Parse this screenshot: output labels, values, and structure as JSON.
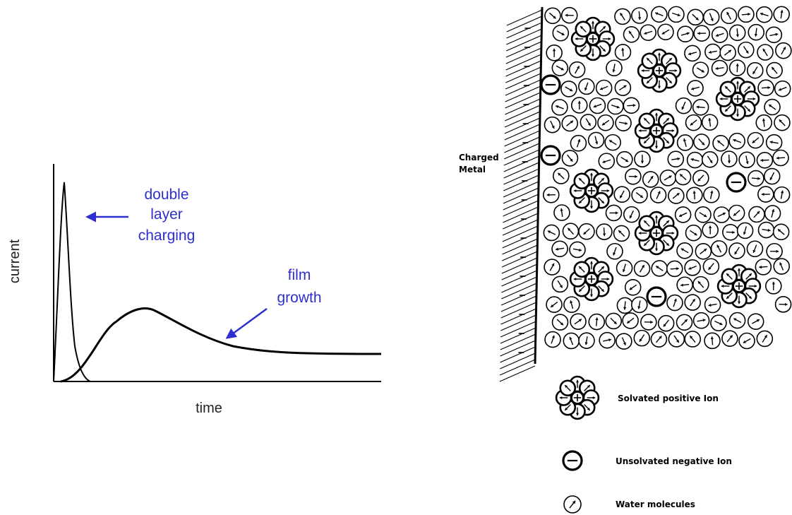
{
  "plot": {
    "xlabel": "time",
    "ylabel": "current",
    "annotations": {
      "double_layer": [
        "double",
        "layer",
        "charging"
      ],
      "film": [
        "film",
        "growth"
      ]
    },
    "annotation_color": "#2f2fd0",
    "curves": [
      "double-layer-charging-peak",
      "film-growth-curve"
    ]
  },
  "diagram": {
    "electrode_label": [
      "Charged",
      "Metal"
    ],
    "legend": {
      "positive": "Solvated positive Ion",
      "negative": "Unsolvated negative Ion",
      "water": "Water molecules"
    }
  }
}
